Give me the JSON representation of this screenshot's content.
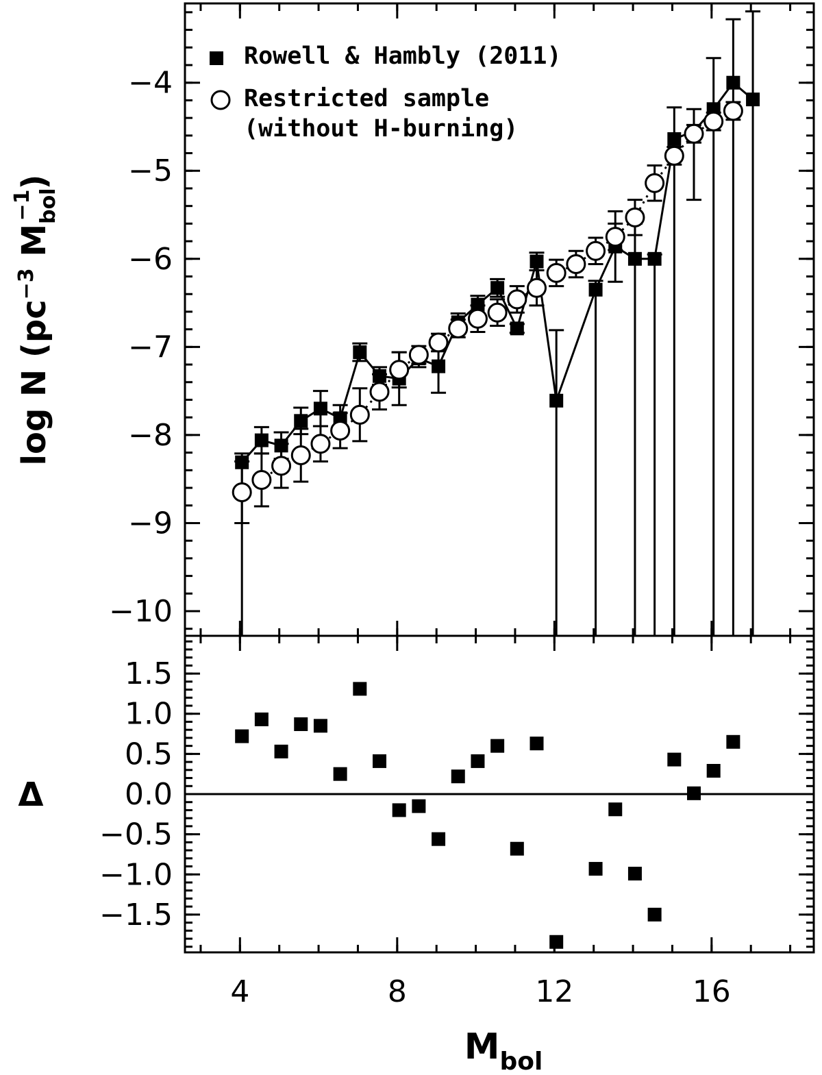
{
  "chart_data": [
    {
      "type": "scatter",
      "xlim": [
        2.6,
        18.6
      ],
      "ylim": [
        -10.28,
        -3.1
      ],
      "yticks": [
        {
          "value": -10,
          "label": "−10"
        },
        {
          "value": -9,
          "label": "−9"
        },
        {
          "value": -8,
          "label": "−8"
        },
        {
          "value": -7,
          "label": "−7"
        },
        {
          "value": -6,
          "label": "−6"
        },
        {
          "value": -5,
          "label": "−5"
        },
        {
          "value": -4,
          "label": "−4"
        }
      ],
      "ylabel_parts": [
        "log N (pc",
        "−3",
        " M",
        "bol",
        "−1",
        ")"
      ],
      "legend": "upper left",
      "series": [
        {
          "name": "Rowell & Hambly (2011)",
          "color": "#000000",
          "marker": "square",
          "line": "solid",
          "x": [
            4.05,
            4.55,
            5.05,
            5.55,
            6.05,
            6.55,
            7.05,
            7.55,
            8.05,
            8.55,
            9.05,
            9.55,
            10.05,
            10.55,
            11.05,
            11.55,
            12.05,
            13.05,
            13.55,
            14.05,
            14.55,
            15.05,
            15.55,
            16.05,
            16.55,
            17.05
          ],
          "values": [
            -8.31,
            -8.06,
            -8.12,
            -7.84,
            -7.7,
            -7.81,
            -7.06,
            -7.33,
            -7.36,
            -7.13,
            -7.22,
            -6.72,
            -6.52,
            -6.33,
            -6.79,
            -6.03,
            -7.61,
            -6.35,
            -5.86,
            -6.0,
            -6.0,
            -4.64,
            -4.55,
            -4.3,
            -4.0,
            -4.19
          ],
          "err_plus": [
            0.1,
            0.15,
            0.15,
            0.15,
            0.2,
            0.15,
            0.1,
            0.1,
            0.3,
            0.1,
            0.3,
            0.1,
            0.1,
            0.1,
            0.05,
            0.1,
            0.8,
            0.1,
            0.4,
            0.4,
            0.05,
            0.36,
            0.25,
            0.58,
            0.72,
            1.0
          ],
          "err_minus": [
            3,
            0.15,
            0.15,
            0.15,
            0.2,
            0.15,
            0.1,
            0.1,
            0.3,
            0.1,
            0.3,
            0.1,
            0.1,
            0.1,
            0.05,
            0.1,
            3,
            4,
            0.4,
            5,
            5,
            6,
            0.78,
            6,
            7,
            7
          ]
        },
        {
          "name": "Restricted sample\n(without H-burning)",
          "color": "#000000",
          "marker": "circle",
          "line": "dotted",
          "x": [
            4.05,
            4.55,
            5.05,
            5.55,
            6.05,
            6.55,
            7.05,
            7.55,
            8.05,
            8.55,
            9.05,
            9.55,
            10.05,
            10.55,
            11.05,
            11.55,
            12.05,
            12.55,
            13.05,
            13.55,
            14.05,
            14.55,
            15.05,
            15.55,
            16.05,
            16.55
          ],
          "values": [
            -8.65,
            -8.51,
            -8.35,
            -8.23,
            -8.1,
            -7.95,
            -7.77,
            -7.51,
            -7.26,
            -7.09,
            -6.95,
            -6.79,
            -6.68,
            -6.61,
            -6.46,
            -6.33,
            -6.16,
            -6.06,
            -5.91,
            -5.75,
            -5.53,
            -5.14,
            -4.83,
            -4.58,
            -4.44,
            -4.32
          ],
          "err_plus": [
            0.35,
            0.3,
            0.25,
            0.3,
            0.2,
            0.2,
            0.3,
            0.2,
            0.2,
            0.1,
            0.1,
            0.1,
            0.15,
            0.15,
            0.15,
            0.2,
            0.15,
            0.15,
            0.15,
            0.15,
            0.2,
            0.2,
            0.1,
            0.1,
            0.1,
            0.1
          ],
          "err_minus": [
            0.35,
            0.3,
            0.25,
            0.3,
            0.2,
            0.2,
            0.3,
            0.2,
            0.2,
            0.1,
            0.1,
            0.1,
            0.15,
            0.15,
            0.15,
            0.2,
            0.15,
            0.15,
            0.15,
            0.15,
            0.2,
            0.2,
            0.1,
            0.1,
            0.1,
            0.1
          ]
        }
      ]
    },
    {
      "type": "scatter",
      "xlim": [
        2.6,
        18.6
      ],
      "ylim": [
        -1.97,
        1.97
      ],
      "xticks": [
        4,
        8,
        12,
        16
      ],
      "yticks": [
        {
          "value": -1.5,
          "label": "−1.5"
        },
        {
          "value": -1.0,
          "label": "−1.0"
        },
        {
          "value": -0.5,
          "label": "−0.5"
        },
        {
          "value": 0,
          "label": "0.0"
        },
        {
          "value": 0.5,
          "label": "0.5"
        },
        {
          "value": 1.0,
          "label": "1.0"
        },
        {
          "value": 1.5,
          "label": "1.5"
        }
      ],
      "ylabel": "Δ",
      "xlabel_parts": [
        "M",
        "bol"
      ],
      "hline": 0,
      "series": [
        {
          "color": "#000000",
          "marker": "square",
          "x": [
            4.05,
            4.55,
            5.05,
            5.55,
            6.05,
            6.55,
            7.05,
            7.55,
            8.05,
            8.55,
            9.05,
            9.55,
            10.05,
            10.55,
            11.05,
            11.55,
            12.05,
            13.05,
            13.55,
            14.05,
            14.55,
            15.05,
            15.55,
            16.05,
            16.55
          ],
          "values": [
            0.72,
            0.93,
            0.53,
            0.87,
            0.85,
            0.25,
            1.31,
            0.41,
            -0.2,
            -0.15,
            -0.56,
            0.22,
            0.41,
            0.6,
            -0.68,
            0.63,
            -1.84,
            -0.93,
            -0.19,
            -0.99,
            -1.5,
            0.43,
            0.01,
            0.29,
            0.65
          ]
        }
      ]
    }
  ]
}
